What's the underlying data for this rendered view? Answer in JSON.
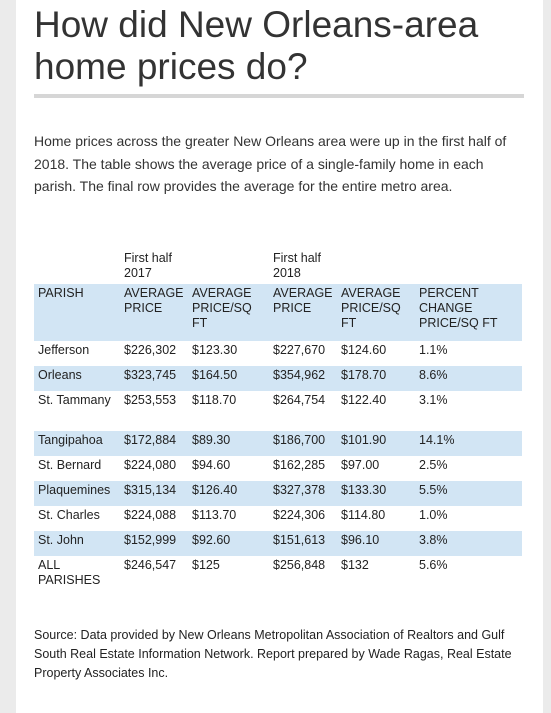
{
  "title": "How did New Orleans-area home prices do?",
  "intro": "Home prices across the greater New Orleans area were up in the first half of 2018. The table shows the average price of a single-family home in each parish. The final row provides the average for the entire metro area.",
  "source": "Source: Data provided by New Orleans Metropolitan Association of Realtors and Gulf South Real Estate Information Network. Report prepared by Wade Ragas, Real Estate Property Associates Inc.",
  "colors": {
    "header_bg": "#d2e5f4",
    "row_alt_bg": "#d2e5f4",
    "text": "#222222"
  },
  "chart_data": {
    "type": "table",
    "group_headers": [
      "",
      "First half 2017",
      "",
      "First half 2018",
      "",
      ""
    ],
    "columns": [
      "PARISH",
      "AVERAGE PRICE",
      "AVERAGE PRICE/SQ FT",
      "AVERAGE PRICE",
      "AVERAGE PRICE/SQ FT",
      "PERCENT CHANGE PRICE/SQ FT"
    ],
    "rows": [
      [
        "Jefferson",
        "$226,302",
        "$123.30",
        "$227,670",
        "$124.60",
        "1.1%"
      ],
      [
        "Orleans",
        "$323,745",
        "$164.50",
        "$354,962",
        "$178.70",
        "8.6%"
      ],
      [
        "St. Tammany",
        "$253,553",
        "$118.70",
        "$264,754",
        "$122.40",
        "3.1%"
      ],
      [
        "Tangipahoa",
        "$172,884",
        "$89.30",
        "$186,700",
        "$101.90",
        "14.1%"
      ],
      [
        "St. Bernard",
        "$224,080",
        "$94.60",
        "$162,285",
        "$97.00",
        "2.5%"
      ],
      [
        "Plaquemines",
        "$315,134",
        "$126.40",
        "$327,378",
        "$133.30",
        "5.5%"
      ],
      [
        "St. Charles",
        "$224,088",
        "$113.70",
        "$224,306",
        "$114.80",
        "1.0%"
      ],
      [
        "St. John",
        "$152,999",
        "$92.60",
        "$151,613",
        "$96.10",
        "3.8%"
      ],
      [
        "ALL PARISHES",
        "$246,547",
        "$125",
        "$256,848",
        "$132",
        "5.6%"
      ]
    ]
  }
}
